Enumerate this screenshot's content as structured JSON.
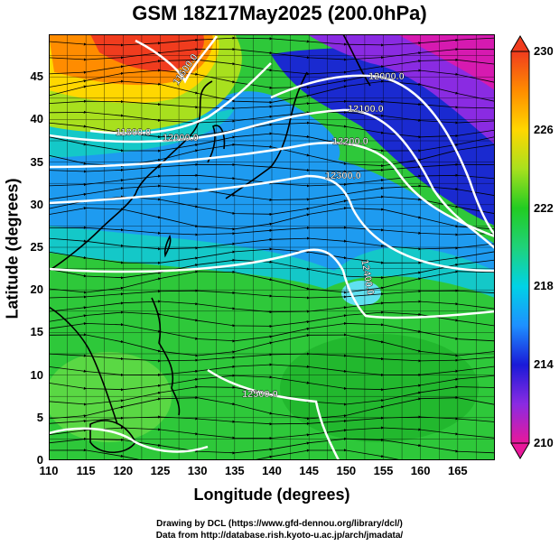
{
  "title": "GSM 18Z17May2025 (200.0hPa)",
  "axes": {
    "xlabel": "Longitude (degrees)",
    "ylabel": "Latitude  (degrees)",
    "xticks": [
      "110",
      "115",
      "120",
      "125",
      "130",
      "135",
      "140",
      "145",
      "150",
      "155",
      "160",
      "165"
    ],
    "yticks": [
      "0",
      "5",
      "10",
      "15",
      "20",
      "25",
      "30",
      "35",
      "40",
      "45"
    ],
    "xrange": [
      110,
      170
    ],
    "yrange": [
      0,
      50
    ]
  },
  "colorbar": {
    "ticks": [
      "230",
      "226",
      "222",
      "218",
      "214",
      "210"
    ],
    "range": [
      210,
      230
    ],
    "colors": [
      "#e8189a",
      "#8a2be2",
      "#1a1ad8",
      "#1e90ff",
      "#00d2e6",
      "#1fd27a",
      "#22cc22",
      "#a8e01e",
      "#ffd700",
      "#ff8c00",
      "#f03c1e"
    ]
  },
  "contours": [
    {
      "label": "11600.0"
    },
    {
      "label": "11800.0"
    },
    {
      "label": "12000.0"
    },
    {
      "label": "12000.0"
    },
    {
      "label": "12100.0"
    },
    {
      "label": "12200.0"
    },
    {
      "label": "12300.0"
    },
    {
      "label": "12400.0"
    },
    {
      "label": "12500.0"
    }
  ],
  "credits": {
    "line1": "Drawing by DCL (https://www.gfd-dennou.org/library/dcl/)",
    "line2": "Data from http://database.rish.kyoto-u.ac.jp/arch/jmadata/"
  }
}
